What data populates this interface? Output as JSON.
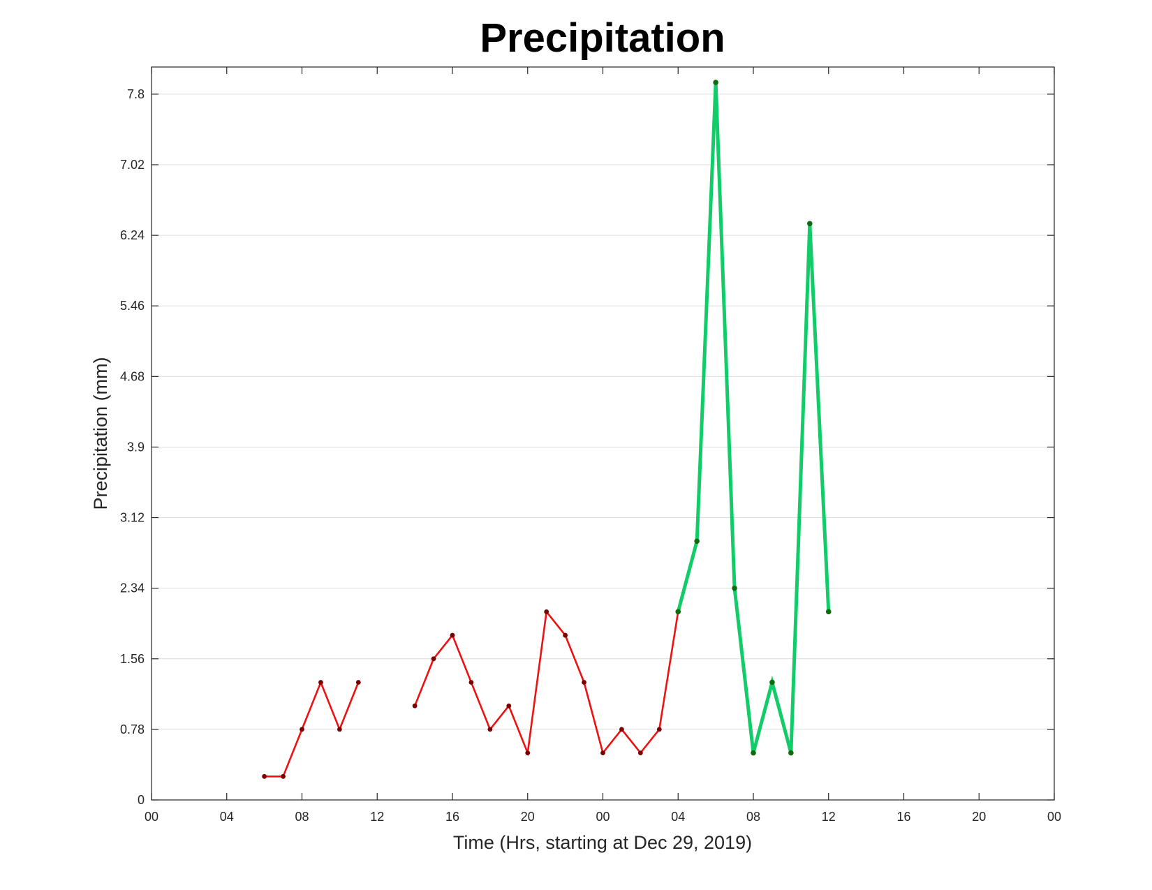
{
  "chart_data": {
    "type": "line",
    "title": "Precipitation",
    "xlabel": "Time (Hrs, starting at Dec 29, 2019)",
    "ylabel": "Precipitation (mm)",
    "xlim": [
      0,
      48
    ],
    "ylim": [
      0,
      8.1
    ],
    "x_ticks": [
      0,
      4,
      8,
      12,
      16,
      20,
      24,
      28,
      32,
      36,
      40,
      44,
      48
    ],
    "x_tick_labels": [
      "00",
      "04",
      "08",
      "12",
      "16",
      "20",
      "00",
      "04",
      "08",
      "12",
      "16",
      "20",
      "00"
    ],
    "y_ticks": [
      0,
      0.78,
      1.56,
      2.34,
      3.12,
      3.9,
      4.68,
      5.46,
      6.24,
      7.02,
      7.8
    ],
    "y_tick_labels": [
      "0",
      "0.78",
      "1.56",
      "2.34",
      "3.12",
      "3.9",
      "4.68",
      "5.46",
      "6.24",
      "7.02",
      "7.8"
    ],
    "grid": "horizontal",
    "series": [
      {
        "color": "#ee1111",
        "marker_color": "#7a0000",
        "line_style": "thin",
        "segments": [
          [
            [
              6,
              0.26
            ],
            [
              7,
              0.26
            ],
            [
              8,
              0.78
            ],
            [
              9,
              1.3
            ],
            [
              10,
              0.78
            ],
            [
              11,
              1.3
            ]
          ],
          [
            [
              14,
              1.04
            ],
            [
              15,
              1.56
            ],
            [
              16,
              1.82
            ],
            [
              17,
              1.3
            ],
            [
              18,
              0.78
            ],
            [
              19,
              1.04
            ],
            [
              20,
              0.52
            ],
            [
              21,
              2.08
            ],
            [
              22,
              1.82
            ],
            [
              23,
              1.3
            ],
            [
              24,
              0.52
            ],
            [
              25,
              0.78
            ],
            [
              26,
              0.52
            ],
            [
              27,
              0.78
            ],
            [
              28,
              2.08
            ]
          ]
        ]
      },
      {
        "color": "#12cc6a",
        "marker_color": "#0e6b0e",
        "line_style": "thick",
        "segments": [
          [
            [
              28,
              2.08
            ],
            [
              29,
              2.86
            ],
            [
              30,
              7.93
            ],
            [
              31,
              2.34
            ],
            [
              32,
              0.52
            ],
            [
              33,
              1.3
            ],
            [
              34,
              0.52
            ],
            [
              35,
              6.37
            ],
            [
              36,
              2.08
            ]
          ]
        ]
      }
    ]
  }
}
